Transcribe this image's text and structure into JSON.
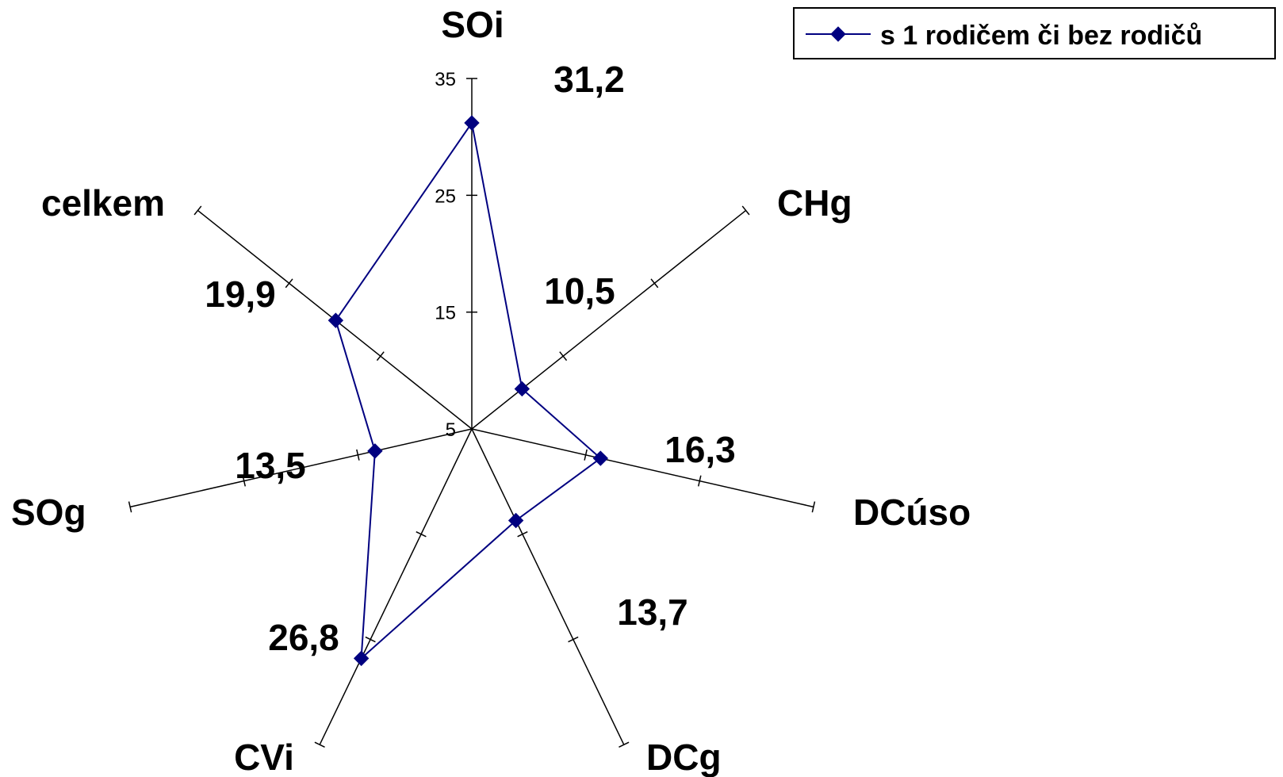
{
  "chart_data": {
    "type": "radar",
    "axes": [
      "SOi",
      "CHg",
      "DCúso",
      "DCg",
      "CVi",
      "SOg",
      "celkem"
    ],
    "rlim": [
      5,
      35
    ],
    "rticks": [
      5,
      15,
      25,
      35
    ],
    "series": [
      {
        "name": "s 1 rodičem či bez rodičů",
        "values": [
          31.2,
          10.5,
          16.3,
          13.7,
          26.8,
          13.5,
          19.9
        ],
        "labels": [
          "31,2",
          "10,5",
          "16,3",
          "13,7",
          "26,8",
          "13,5",
          "19,9"
        ],
        "color": "#000080",
        "marker": "diamond"
      }
    ],
    "legend": "top-right",
    "grid": false
  }
}
